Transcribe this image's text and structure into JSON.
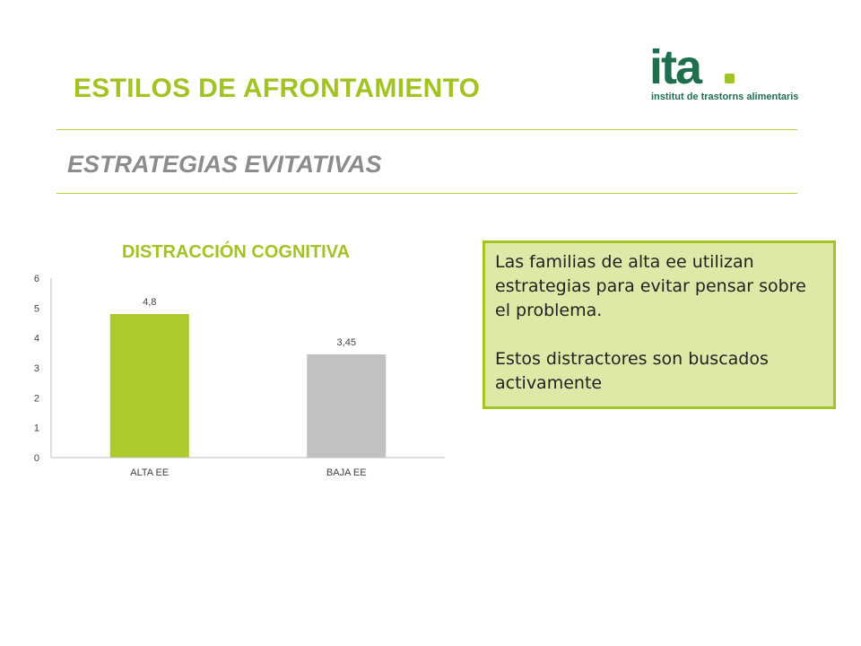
{
  "slide": {
    "title": "ESTILOS DE AFRONTAMIENTO",
    "subtitle": "ESTRATEGIAS EVITATIVAS"
  },
  "logo": {
    "wordmark": "ita",
    "tagline": "institut de trastorns alimentaris"
  },
  "note": {
    "paragraphs": [
      "Las familias de alta ee utilizan estrategias para evitar pensar sobre el problema.",
      "Estos distractores son buscados activamente"
    ]
  },
  "colors": {
    "accent_green": "#a3c223",
    "subtitle_gray": "#8c8c8c",
    "logo_green": "#1f6f4f",
    "note_bg": "#dfe9a7",
    "bar_alta": "#aacb2a",
    "bar_baja": "#c0c1c0"
  },
  "chart_data": {
    "type": "bar",
    "title": "DISTRACCIÓN COGNITIVA",
    "categories": [
      "ALTA EE",
      "BAJA EE"
    ],
    "values": [
      4.8,
      3.45
    ],
    "value_labels": [
      "4,8",
      "3,45"
    ],
    "bar_colors": [
      "#aacb2a",
      "#c0c1c0"
    ],
    "ylim": [
      0,
      6
    ],
    "yticks": [
      0,
      1,
      2,
      3,
      4,
      5,
      6
    ],
    "xlabel": "",
    "ylabel": "",
    "grid": false,
    "legend": "none"
  }
}
